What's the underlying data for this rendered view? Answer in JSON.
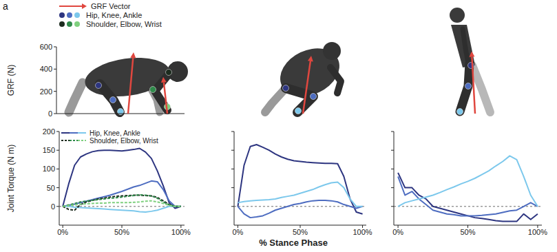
{
  "figure_label": "a",
  "key": [
    {
      "label": "GRF Vector",
      "colors": [
        "#e0473f"
      ]
    },
    {
      "label": "Hip, Knee, Ankle",
      "colors": [
        "#2d3580",
        "#4d6cc0",
        "#7cc8ec"
      ]
    },
    {
      "label": "Shoulder, Elbow, Wrist",
      "colors": [
        "#1c2b1e",
        "#2f8a4a",
        "#7fd07f"
      ]
    }
  ],
  "chart_data": [
    {
      "type": "vector",
      "ylabel": "GRF (N)",
      "ylim": [
        0,
        600
      ],
      "yticks": [
        0,
        200,
        400,
        600
      ],
      "tick_labels": "y",
      "series": [
        {
          "color": "#e0473f",
          "values": [
            550,
            330
          ]
        }
      ]
    },
    {
      "type": "vector",
      "ylim": [
        0,
        600
      ],
      "tick_labels": false,
      "series": [
        {
          "color": "#e0473f",
          "values": [
            520
          ]
        }
      ]
    },
    {
      "type": "vector",
      "ylim": [
        0,
        600
      ],
      "tick_labels": false,
      "series": [
        {
          "color": "#e0473f",
          "values": [
            560
          ]
        }
      ]
    },
    {
      "type": "line",
      "ylabel": "Joint Torque (N m)",
      "x": [
        0,
        5,
        10,
        15,
        20,
        25,
        30,
        35,
        40,
        45,
        50,
        55,
        60,
        65,
        70,
        75,
        80,
        85,
        90,
        95,
        100
      ],
      "xlim": [
        -3,
        103
      ],
      "xticks": [
        {
          "value": 0,
          "label": "0%"
        },
        {
          "value": 50,
          "label": "50%"
        },
        {
          "value": 100,
          "label": "100%"
        }
      ],
      "ylim": [
        -50,
        200
      ],
      "yticks": [
        0,
        50,
        100,
        150,
        200
      ],
      "tick_labels": true,
      "legend_labels": [
        "Hip, Knee, Ankle",
        "Shoulder, Elbow, Wrist"
      ],
      "series": [
        {
          "color": "#2d3580",
          "line_style": "solid",
          "values": [
            0,
            60,
            110,
            132,
            140,
            146,
            149,
            150,
            150,
            149,
            148,
            150,
            152,
            155,
            145,
            128,
            95,
            55,
            10,
            -5,
            0
          ]
        },
        {
          "color": "#4d6cc0",
          "line_style": "solid",
          "values": [
            0,
            3,
            6,
            10,
            14,
            18,
            22,
            26,
            30,
            35,
            40,
            46,
            52,
            56,
            62,
            68,
            66,
            45,
            15,
            0,
            0
          ]
        },
        {
          "color": "#7cc8ec",
          "line_style": "solid",
          "values": [
            0,
            0,
            -2,
            -3,
            -4,
            -5,
            -6,
            -7,
            -8,
            -9,
            -10,
            -11,
            -12,
            -14,
            -15,
            -13,
            -10,
            -5,
            0,
            0,
            0
          ]
        },
        {
          "color": "#1c2b1e",
          "line_style": "dashed",
          "values": [
            0,
            -8,
            -10,
            5,
            12,
            16,
            20,
            22,
            25,
            27,
            28,
            29,
            30,
            30,
            29,
            28,
            24,
            15,
            5,
            0,
            0
          ]
        },
        {
          "color": "#2f8a4a",
          "line_style": "dashed",
          "values": [
            0,
            4,
            8,
            12,
            14,
            16,
            18,
            20,
            22,
            23,
            25,
            27,
            29,
            31,
            30,
            28,
            22,
            12,
            4,
            0,
            0
          ]
        },
        {
          "color": "#7fd07f",
          "line_style": "dashed",
          "values": [
            0,
            2,
            4,
            6,
            7,
            8,
            9,
            9,
            10,
            10,
            10,
            10,
            11,
            12,
            14,
            15,
            12,
            8,
            3,
            0,
            0
          ]
        }
      ]
    },
    {
      "type": "line",
      "xlabel": "% Stance Phase",
      "x": [
        0,
        5,
        10,
        15,
        20,
        25,
        30,
        35,
        40,
        45,
        50,
        55,
        60,
        65,
        70,
        75,
        80,
        85,
        90,
        95,
        100
      ],
      "xlim": [
        -3,
        103
      ],
      "xticks": [
        {
          "value": 0,
          "label": "0%"
        },
        {
          "value": 50,
          "label": "50%"
        },
        {
          "value": 100,
          "label": "100%"
        }
      ],
      "ylim": [
        -50,
        200
      ],
      "yticks": [
        0,
        50,
        100,
        150,
        200
      ],
      "tick_labels": "x",
      "series": [
        {
          "color": "#2d3580",
          "line_style": "solid",
          "values": [
            0,
            110,
            160,
            165,
            158,
            150,
            140,
            132,
            126,
            122,
            120,
            118,
            117,
            116,
            115,
            115,
            114,
            80,
            20,
            -15,
            -20
          ]
        },
        {
          "color": "#4d6cc0",
          "line_style": "solid",
          "values": [
            0,
            -20,
            -30,
            -28,
            -25,
            -18,
            -10,
            -5,
            0,
            5,
            8,
            12,
            15,
            16,
            16,
            15,
            12,
            5,
            0,
            -5,
            0
          ]
        },
        {
          "color": "#7cc8ec",
          "line_style": "solid",
          "values": [
            10,
            13,
            15,
            16,
            17,
            18,
            20,
            24,
            27,
            30,
            35,
            40,
            45,
            52,
            58,
            63,
            65,
            50,
            20,
            0,
            0
          ]
        }
      ]
    },
    {
      "type": "line",
      "x": [
        0,
        5,
        10,
        15,
        20,
        25,
        30,
        35,
        40,
        45,
        50,
        55,
        60,
        65,
        70,
        75,
        80,
        85,
        90,
        95,
        100
      ],
      "xlim": [
        -3,
        103
      ],
      "xticks": [
        {
          "value": 0,
          "label": "0%"
        },
        {
          "value": 50,
          "label": "50%"
        },
        {
          "value": 100,
          "label": "100%"
        }
      ],
      "ylim": [
        -50,
        200
      ],
      "yticks": [
        0,
        50,
        100,
        150,
        200
      ],
      "tick_labels": "x",
      "series": [
        {
          "color": "#2d3580",
          "line_style": "solid",
          "values": [
            90,
            50,
            50,
            30,
            20,
            0,
            -5,
            -10,
            -15,
            -20,
            -25,
            -30,
            -32,
            -35,
            -38,
            -40,
            -40,
            -40,
            -20,
            -35,
            -20
          ]
        },
        {
          "color": "#4d6cc0",
          "line_style": "solid",
          "values": [
            80,
            30,
            40,
            20,
            5,
            -10,
            -15,
            -20,
            -22,
            -25,
            -25,
            -25,
            -24,
            -22,
            -20,
            -16,
            -12,
            -10,
            0,
            10,
            0
          ]
        },
        {
          "color": "#7cc8ec",
          "line_style": "solid",
          "values": [
            0,
            10,
            15,
            20,
            25,
            30,
            37,
            45,
            52,
            60,
            67,
            75,
            85,
            95,
            108,
            120,
            135,
            125,
            80,
            30,
            0
          ]
        }
      ]
    }
  ]
}
